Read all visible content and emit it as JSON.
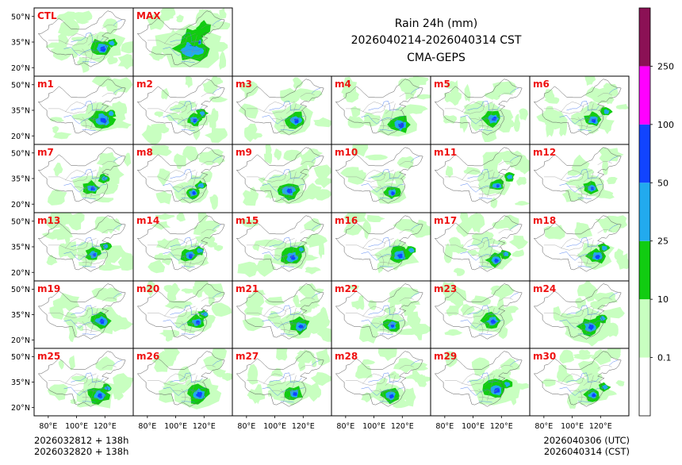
{
  "header": {
    "title": "Rain 24h (mm)",
    "period": "2026040214-2026040314 CST",
    "model": "CMA-GEPS"
  },
  "footer": {
    "left_line1": "2026032812 + 138h",
    "left_line2": "2026032820 + 138h",
    "right_line1": "2026040306 (UTC)",
    "right_line2": "2026040314 (CST)"
  },
  "colors": {
    "light_green": "#c8ffc0",
    "green": "#11cc11",
    "sky_blue": "#22aaee",
    "blue": "#1144ff",
    "magenta": "#ff00ff",
    "purple": "#8b1155",
    "label_red": "#ee1111",
    "border_black": "#555555",
    "river_blue": "#4477ee"
  },
  "chart_data": {
    "type": "heatmap",
    "title": "Rain 24h (mm)",
    "subtitle": "2026040214-2026040314 CST",
    "source": "CMA-GEPS",
    "panel_labels": {
      "top": [
        "CTL",
        "MAX"
      ],
      "members": [
        "m1",
        "m2",
        "m3",
        "m4",
        "m5",
        "m6",
        "m7",
        "m8",
        "m9",
        "m10",
        "m11",
        "m12",
        "m13",
        "m14",
        "m15",
        "m16",
        "m17",
        "m18",
        "m19",
        "m20",
        "m21",
        "m22",
        "m23",
        "m24",
        "m25",
        "m26",
        "m27",
        "m28",
        "m29",
        "m30"
      ]
    },
    "grid": {
      "rows": 6,
      "cols": 6
    },
    "lon_range": [
      70,
      140
    ],
    "lat_range": [
      15,
      55
    ],
    "lat_ticks": [
      20,
      35,
      50
    ],
    "lat_tick_labels": [
      "20°N",
      "35°N",
      "50°N"
    ],
    "lon_ticks": [
      80,
      100,
      120
    ],
    "lon_tick_labels": [
      "80°E",
      "100°E",
      "120°E"
    ],
    "colorbar": {
      "levels": [
        0.1,
        10,
        25,
        50,
        100,
        250
      ],
      "level_labels": [
        "0.1",
        "10",
        "25",
        "50",
        "100",
        "250"
      ],
      "colors": [
        "#ffffff",
        "#c8ffc0",
        "#11cc11",
        "#22aaee",
        "#1144ff",
        "#ff00ff",
        "#8b1155"
      ]
    }
  }
}
